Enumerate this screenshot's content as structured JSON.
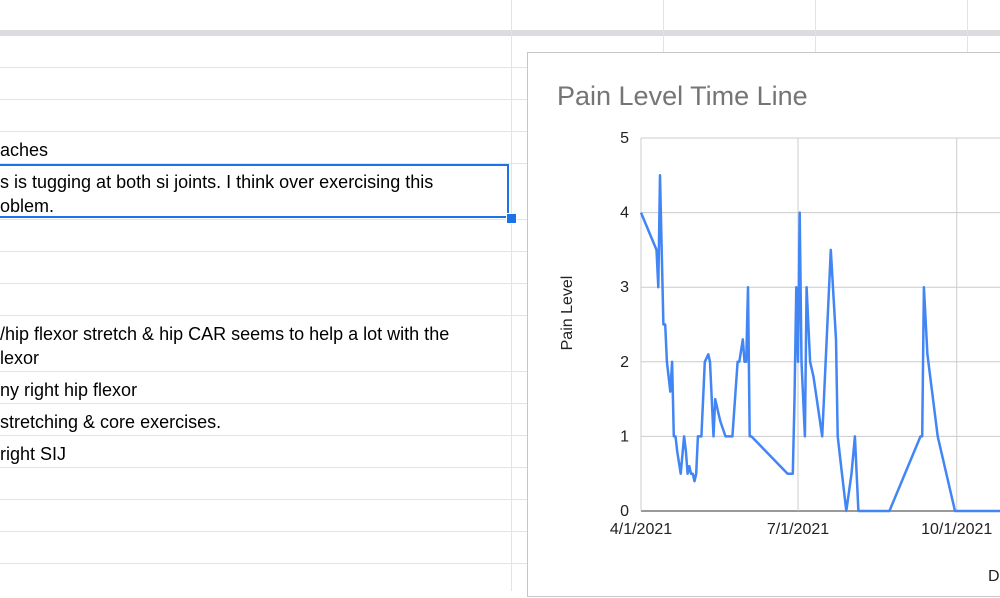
{
  "sheet": {
    "rows": [
      {
        "text": "aches"
      },
      {
        "text": "s is tugging at both si joints. I think over exercising this"
      },
      {
        "text": "oblem."
      },
      {
        "text": "/hip flexor stretch & hip CAR seems to help a lot with the"
      },
      {
        "text": "lexor"
      },
      {
        "text": "ny right hip flexor"
      },
      {
        "text": "stretching & core exercises."
      },
      {
        "text": "right SIJ"
      }
    ]
  },
  "chart_data": {
    "type": "line",
    "title": "Pain Level Time Line",
    "ylabel": "Pain Level",
    "xlabel_partial": "D",
    "ylim": [
      0,
      5
    ],
    "y_ticks": [
      "0",
      "1",
      "2",
      "3",
      "4",
      "5"
    ],
    "x_ticks": [
      "4/1/2021",
      "7/1/2021",
      "10/1/2021"
    ],
    "grid": true,
    "color": "#4285f4",
    "series": [
      {
        "x": [
          "2021-04-01",
          "2021-04-10",
          "2021-04-11",
          "2021-04-12",
          "2021-04-14",
          "2021-04-15",
          "2021-04-16",
          "2021-04-18",
          "2021-04-19",
          "2021-04-20",
          "2021-04-21",
          "2021-04-22",
          "2021-04-24",
          "2021-04-26",
          "2021-04-27",
          "2021-04-28",
          "2021-04-29",
          "2021-04-30",
          "2021-05-01",
          "2021-05-02",
          "2021-05-03",
          "2021-05-04",
          "2021-05-05",
          "2021-05-06",
          "2021-05-08",
          "2021-05-10",
          "2021-05-11",
          "2021-05-13",
          "2021-05-14",
          "2021-05-16",
          "2021-05-17",
          "2021-05-20",
          "2021-05-24",
          "2021-05-27",
          "2021-05-28",
          "2021-05-30",
          "2021-05-31",
          "2021-06-01",
          "2021-06-02",
          "2021-06-03",
          "2021-06-04",
          "2021-06-25",
          "2021-06-28",
          "2021-06-29",
          "2021-06-30",
          "2021-07-01",
          "2021-07-02",
          "2021-07-03",
          "2021-07-05",
          "2021-07-06",
          "2021-07-08",
          "2021-07-10",
          "2021-07-15",
          "2021-07-20",
          "2021-07-23",
          "2021-07-24",
          "2021-07-26",
          "2021-07-29",
          "2021-08-01",
          "2021-08-03",
          "2021-08-05",
          "2021-08-08",
          "2021-08-10",
          "2021-08-14",
          "2021-08-15",
          "2021-08-17",
          "2021-08-23",
          "2021-09-10",
          "2021-09-11",
          "2021-09-12",
          "2021-09-14",
          "2021-09-20",
          "2021-09-30",
          "2021-10-01",
          "2021-10-03",
          "2021-10-05",
          "2021-10-10",
          "2021-10-20"
        ],
        "y": [
          4,
          3.5,
          3,
          4.5,
          2.5,
          2.5,
          2,
          1.6,
          2,
          1,
          1,
          0.8,
          0.5,
          1,
          0.8,
          0.5,
          0.6,
          0.5,
          0.5,
          0.4,
          0.5,
          1,
          1,
          1,
          2,
          2.1,
          2,
          1,
          1.5,
          1.3,
          1.2,
          1,
          1,
          2,
          2,
          2.3,
          2,
          2,
          3,
          1,
          1,
          0.5,
          0.5,
          1.5,
          3,
          2,
          4,
          2,
          1,
          3,
          2,
          1.8,
          1,
          3.5,
          2.3,
          1,
          0.6,
          0,
          0.5,
          1,
          0,
          0,
          0,
          0,
          0,
          0,
          0,
          1,
          1,
          3,
          2.1,
          1,
          0,
          0,
          0,
          0,
          0,
          0
        ]
      }
    ]
  }
}
